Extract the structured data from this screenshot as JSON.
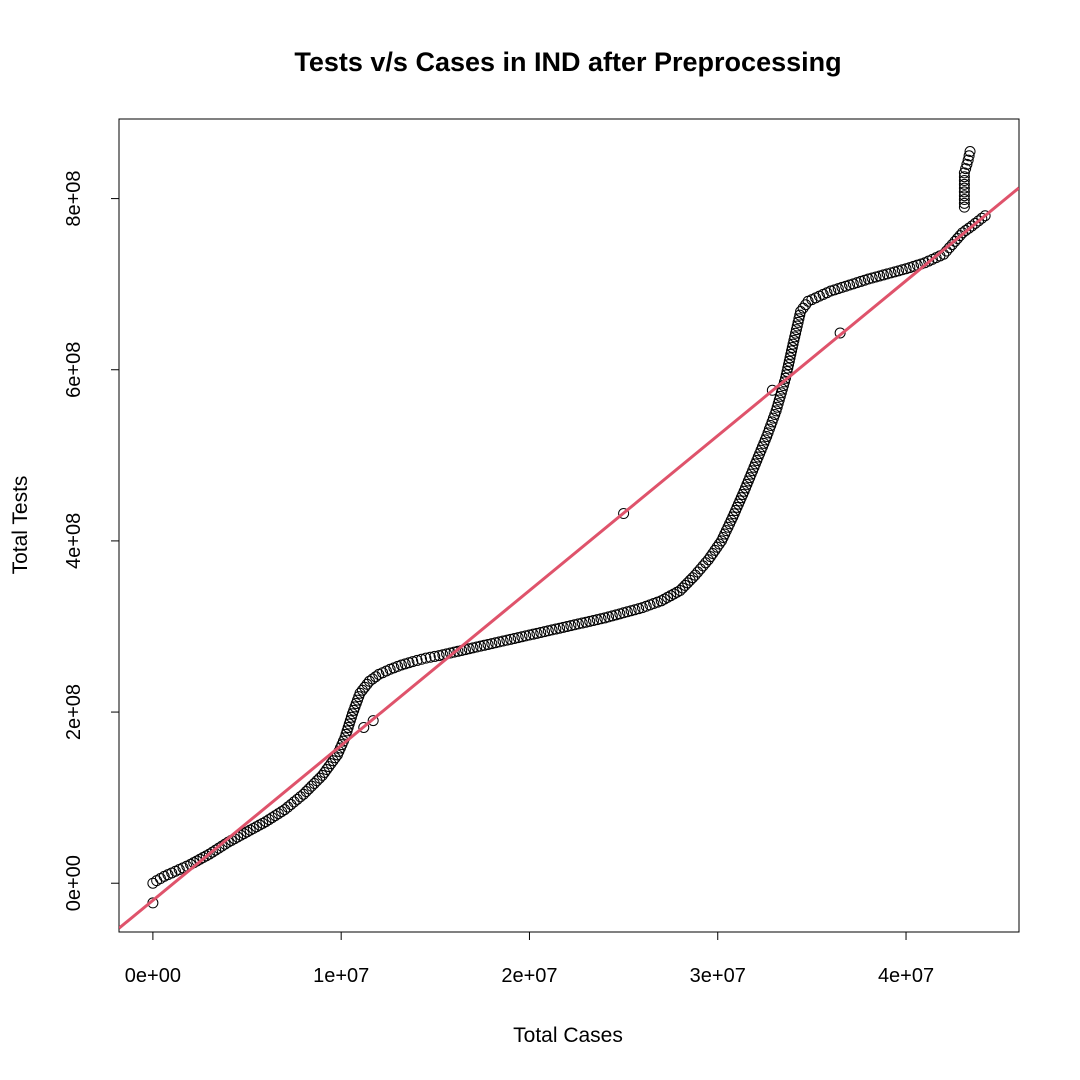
{
  "chart_data": {
    "type": "scatter",
    "title": "Tests v/s Cases in IND after Preprocessing",
    "xlabel": "Total Cases",
    "ylabel": "Total Tests",
    "xlim": [
      -1800000,
      46000000
    ],
    "ylim": [
      -57000000,
      893000000
    ],
    "x_ticks": [
      {
        "value": 0,
        "label": "0e+00"
      },
      {
        "value": 10000000,
        "label": "1e+07"
      },
      {
        "value": 20000000,
        "label": "2e+07"
      },
      {
        "value": 30000000,
        "label": "3e+07"
      },
      {
        "value": 40000000,
        "label": "4e+07"
      }
    ],
    "y_ticks": [
      {
        "value": 0,
        "label": "0e+00"
      },
      {
        "value": 200000000,
        "label": "2e+08"
      },
      {
        "value": 400000000,
        "label": "4e+08"
      },
      {
        "value": 600000000,
        "label": "6e+08"
      },
      {
        "value": 800000000,
        "label": "8e+08"
      }
    ],
    "grid": false,
    "series": [
      {
        "marker": "open-circle",
        "color": "#000000",
        "points": [
          [
            0,
            0
          ],
          [
            200000,
            3000000
          ],
          [
            600000,
            8000000
          ],
          [
            1200000,
            14000000
          ],
          [
            2000000,
            22000000
          ],
          [
            3000000,
            34000000
          ],
          [
            4000000,
            48000000
          ],
          [
            5000000,
            60000000
          ],
          [
            6000000,
            72000000
          ],
          [
            7000000,
            86000000
          ],
          [
            8000000,
            104000000
          ],
          [
            9000000,
            126000000
          ],
          [
            9800000,
            150000000
          ],
          [
            10200000,
            170000000
          ],
          [
            10600000,
            198000000
          ],
          [
            11000000,
            222000000
          ],
          [
            11500000,
            236000000
          ],
          [
            12000000,
            244000000
          ],
          [
            12600000,
            250000000
          ],
          [
            13200000,
            255000000
          ],
          [
            13800000,
            259000000
          ],
          [
            14500000,
            263000000
          ],
          [
            15200000,
            266000000
          ],
          [
            16000000,
            270000000
          ],
          [
            17000000,
            275000000
          ],
          [
            18000000,
            280000000
          ],
          [
            19000000,
            285000000
          ],
          [
            20000000,
            290000000
          ],
          [
            21000000,
            295000000
          ],
          [
            22000000,
            300000000
          ],
          [
            23000000,
            305000000
          ],
          [
            24000000,
            310000000
          ],
          [
            25000000,
            316000000
          ],
          [
            26000000,
            322000000
          ],
          [
            27000000,
            330000000
          ],
          [
            28000000,
            342000000
          ],
          [
            28800000,
            360000000
          ],
          [
            29500000,
            378000000
          ],
          [
            30200000,
            400000000
          ],
          [
            30800000,
            428000000
          ],
          [
            31400000,
            458000000
          ],
          [
            32000000,
            490000000
          ],
          [
            32600000,
            522000000
          ],
          [
            33100000,
            552000000
          ],
          [
            33600000,
            590000000
          ],
          [
            34000000,
            630000000
          ],
          [
            34400000,
            668000000
          ],
          [
            34800000,
            680000000
          ],
          [
            35400000,
            686000000
          ],
          [
            36000000,
            692000000
          ],
          [
            37000000,
            699000000
          ],
          [
            38000000,
            706000000
          ],
          [
            39000000,
            712000000
          ],
          [
            40000000,
            718000000
          ],
          [
            41000000,
            725000000
          ],
          [
            42000000,
            735000000
          ],
          [
            42600000,
            750000000
          ],
          [
            43000000,
            760000000
          ],
          [
            43500000,
            768000000
          ],
          [
            44200000,
            780000000
          ],
          [
            43100000,
            790000000
          ],
          [
            43100000,
            830000000
          ],
          [
            43300000,
            845000000
          ],
          [
            43400000,
            855000000
          ],
          [
            0,
            -23000000
          ],
          [
            11200000,
            182000000
          ],
          [
            11700000,
            190000000
          ],
          [
            25000000,
            432000000
          ],
          [
            32900000,
            576000000
          ],
          [
            36500000,
            643000000
          ]
        ]
      }
    ],
    "regression_line": {
      "color": "#DF536B",
      "intercept": -20000000,
      "slope": 18.1
    }
  }
}
